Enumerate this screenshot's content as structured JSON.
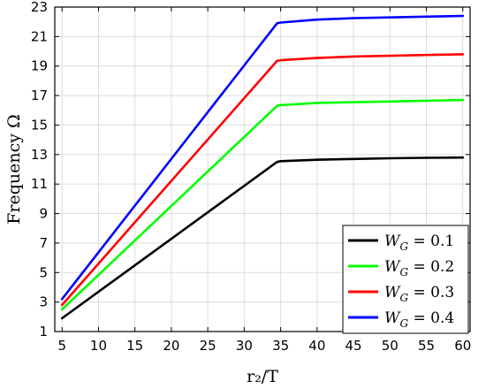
{
  "chart_data": {
    "type": "line",
    "xlabel": "r₂/T",
    "ylabel": "Frequency Ω",
    "xlim": [
      4,
      61
    ],
    "ylim": [
      1,
      23
    ],
    "xticks": [
      5,
      10,
      15,
      20,
      25,
      30,
      35,
      40,
      45,
      50,
      55,
      60
    ],
    "yticks": [
      1,
      3,
      5,
      7,
      9,
      11,
      13,
      15,
      17,
      19,
      21,
      23
    ],
    "grid": true,
    "legend_position": "bottom-right",
    "series": [
      {
        "name": "W_G = 0.1",
        "label": "W",
        "subscript": "G",
        "value_text": " = 0.1",
        "color": "#000000",
        "x": [
          5,
          34.5,
          35,
          40,
          45,
          50,
          55,
          60
        ],
        "y": [
          1.9,
          12.5,
          12.55,
          12.65,
          12.7,
          12.75,
          12.78,
          12.8
        ]
      },
      {
        "name": "W_G = 0.2",
        "label": "W",
        "subscript": "G",
        "value_text": " = 0.2",
        "color": "#00ff00",
        "x": [
          5,
          34.5,
          35,
          40,
          45,
          50,
          55,
          60
        ],
        "y": [
          2.5,
          16.3,
          16.35,
          16.5,
          16.55,
          16.6,
          16.65,
          16.7
        ]
      },
      {
        "name": "W_G = 0.3",
        "label": "W",
        "subscript": "G",
        "value_text": " = 0.3",
        "color": "#ff0000",
        "x": [
          5,
          34.5,
          35,
          40,
          45,
          50,
          55,
          60
        ],
        "y": [
          2.8,
          19.35,
          19.4,
          19.55,
          19.65,
          19.7,
          19.75,
          19.8
        ]
      },
      {
        "name": "W_G = 0.4",
        "label": "W",
        "subscript": "G",
        "value_text": " = 0.4",
        "color": "#0000ff",
        "x": [
          5,
          34.5,
          35,
          40,
          45,
          50,
          55,
          60
        ],
        "y": [
          3.2,
          21.9,
          21.95,
          22.15,
          22.25,
          22.3,
          22.35,
          22.4
        ]
      }
    ]
  }
}
